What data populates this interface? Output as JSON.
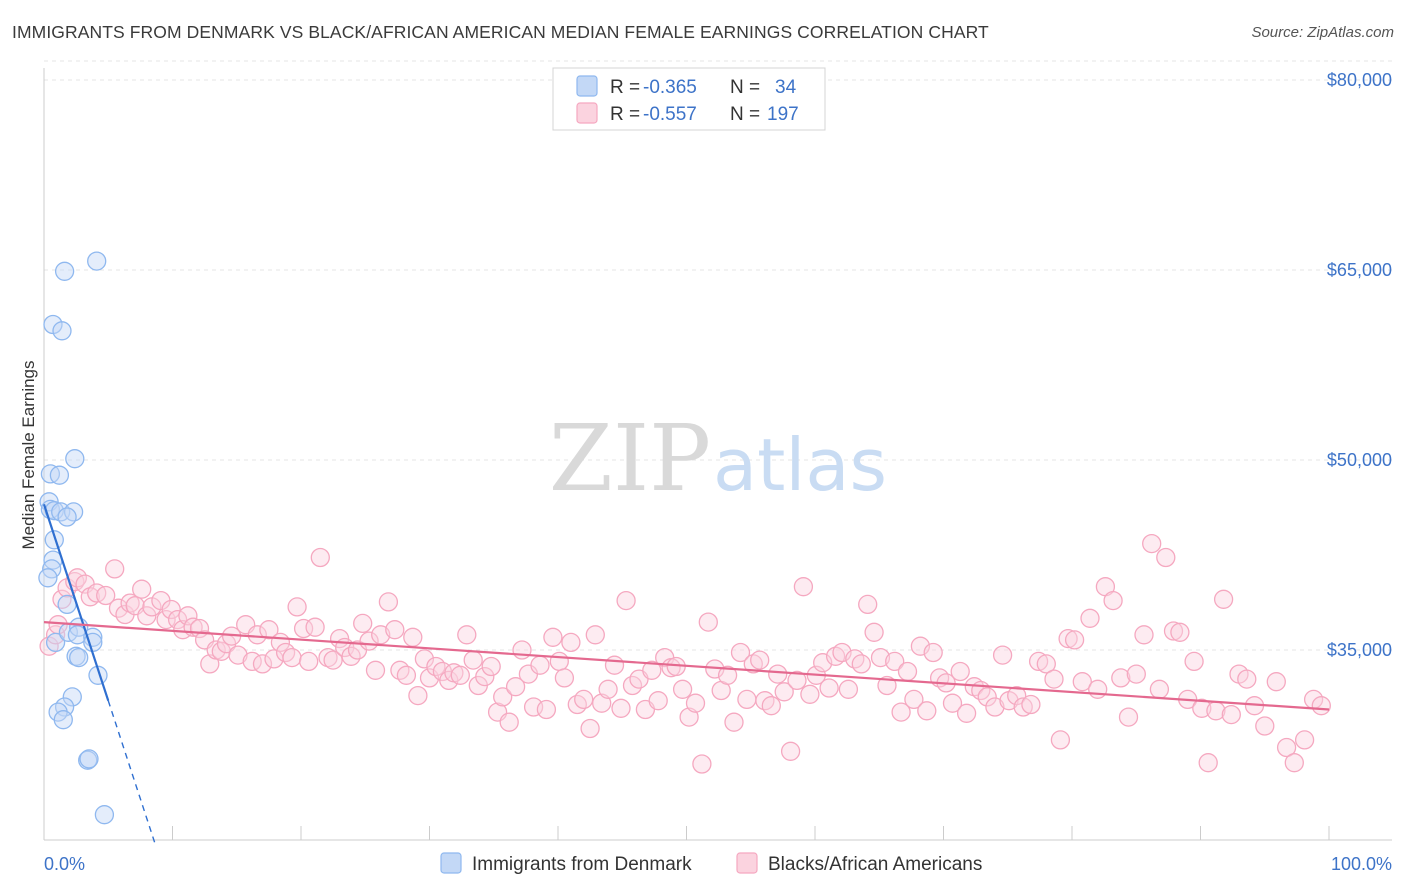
{
  "header": {
    "title": "IMMIGRANTS FROM DENMARK VS BLACK/AFRICAN AMERICAN MEDIAN FEMALE EARNINGS CORRELATION CHART",
    "source": "Source: ZipAtlas.com"
  },
  "watermark": {
    "zip": "ZIP",
    "atlas": "atlas"
  },
  "legend": {
    "r_label": "R =",
    "n_label": "N =",
    "rows": [
      {
        "r": "-0.365",
        "n": "34",
        "color": "#8fb8ef"
      },
      {
        "r": "-0.557",
        "n": "197",
        "color": "#f5a8c0"
      }
    ]
  },
  "chart_data": {
    "type": "scatter",
    "title": "IMMIGRANTS FROM DENMARK VS BLACK/AFRICAN AMERICAN MEDIAN FEMALE EARNINGS CORRELATION CHART",
    "ylabel": "Median Female Earnings",
    "xlabel": "",
    "x_tick_labels": [
      "0.0%",
      "100.0%"
    ],
    "y_tick_labels": [
      "$35,000",
      "$50,000",
      "$65,000",
      "$80,000"
    ],
    "y_tick_values": [
      35000,
      50000,
      65000,
      80000
    ],
    "xlim": [
      0,
      100
    ],
    "ylim": [
      20000,
      81500
    ],
    "grid": true,
    "series": [
      {
        "name": "Immigrants from Denmark",
        "color": "#8fb8ef",
        "line_color": "#2f6fd0",
        "trend": {
          "x0": 0,
          "y0": 46500,
          "x1": 5,
          "y1": 31000,
          "dash_to_x": 8.7
        },
        "points": [
          [
            4.1,
            65700
          ],
          [
            1.6,
            64900
          ],
          [
            0.7,
            60700
          ],
          [
            1.4,
            60200
          ],
          [
            2.4,
            50100
          ],
          [
            0.5,
            48900
          ],
          [
            1.2,
            48800
          ],
          [
            0.4,
            46700
          ],
          [
            0.5,
            46100
          ],
          [
            0.8,
            46000
          ],
          [
            1.3,
            45900
          ],
          [
            2.3,
            45900
          ],
          [
            1.8,
            45500
          ],
          [
            0.8,
            43700
          ],
          [
            0.7,
            42100
          ],
          [
            0.6,
            41400
          ],
          [
            0.3,
            40700
          ],
          [
            1.8,
            38600
          ],
          [
            0.9,
            35600
          ],
          [
            1.9,
            36400
          ],
          [
            2.7,
            36800
          ],
          [
            2.6,
            36200
          ],
          [
            3.8,
            36000
          ],
          [
            3.8,
            35600
          ],
          [
            2.5,
            34500
          ],
          [
            2.7,
            34400
          ],
          [
            4.2,
            33000
          ],
          [
            2.2,
            31300
          ],
          [
            1.6,
            30500
          ],
          [
            1.1,
            30100
          ],
          [
            1.5,
            29500
          ],
          [
            3.4,
            26300
          ],
          [
            3.5,
            26400
          ],
          [
            4.7,
            22000
          ]
        ]
      },
      {
        "name": "Blacks/African Americans",
        "color": "#f5a8c0",
        "line_color": "#e4698f",
        "trend": {
          "x0": 0,
          "y0": 37200,
          "x1": 100,
          "y1": 30300
        },
        "points": [
          [
            0.4,
            35300
          ],
          [
            0.9,
            36200
          ],
          [
            1.1,
            37000
          ],
          [
            1.4,
            39000
          ],
          [
            1.8,
            39900
          ],
          [
            2.4,
            40400
          ],
          [
            2.6,
            40700
          ],
          [
            3.2,
            40200
          ],
          [
            3.6,
            39200
          ],
          [
            4.1,
            39500
          ],
          [
            4.8,
            39300
          ],
          [
            5.5,
            41400
          ],
          [
            5.8,
            38300
          ],
          [
            6.3,
            37800
          ],
          [
            6.7,
            38700
          ],
          [
            7.1,
            38500
          ],
          [
            7.6,
            39800
          ],
          [
            8.0,
            37700
          ],
          [
            8.4,
            38400
          ],
          [
            9.1,
            38900
          ],
          [
            9.5,
            37400
          ],
          [
            9.9,
            38200
          ],
          [
            10.4,
            37400
          ],
          [
            10.8,
            36600
          ],
          [
            11.2,
            37700
          ],
          [
            11.6,
            36800
          ],
          [
            12.1,
            36700
          ],
          [
            12.5,
            35800
          ],
          [
            12.9,
            33900
          ],
          [
            13.4,
            35000
          ],
          [
            13.8,
            34900
          ],
          [
            14.2,
            35500
          ],
          [
            14.6,
            36100
          ],
          [
            15.1,
            34600
          ],
          [
            15.7,
            37000
          ],
          [
            16.2,
            34100
          ],
          [
            16.6,
            36200
          ],
          [
            17.0,
            33900
          ],
          [
            17.5,
            36600
          ],
          [
            17.9,
            34300
          ],
          [
            18.4,
            35600
          ],
          [
            18.8,
            34800
          ],
          [
            19.3,
            34400
          ],
          [
            19.7,
            38400
          ],
          [
            20.2,
            36700
          ],
          [
            20.6,
            34100
          ],
          [
            21.1,
            36800
          ],
          [
            21.5,
            42300
          ],
          [
            22.1,
            34400
          ],
          [
            22.5,
            34200
          ],
          [
            23.0,
            35900
          ],
          [
            23.4,
            35200
          ],
          [
            23.9,
            34500
          ],
          [
            24.4,
            35000
          ],
          [
            24.8,
            37100
          ],
          [
            25.3,
            35700
          ],
          [
            25.8,
            33400
          ],
          [
            26.2,
            36200
          ],
          [
            26.8,
            38800
          ],
          [
            27.3,
            36600
          ],
          [
            27.7,
            33400
          ],
          [
            28.2,
            33000
          ],
          [
            28.7,
            36000
          ],
          [
            29.1,
            31400
          ],
          [
            29.6,
            34300
          ],
          [
            30.0,
            32800
          ],
          [
            30.5,
            33700
          ],
          [
            31.0,
            33300
          ],
          [
            31.5,
            32600
          ],
          [
            31.9,
            33200
          ],
          [
            32.4,
            33000
          ],
          [
            32.9,
            36200
          ],
          [
            33.4,
            34200
          ],
          [
            33.8,
            32200
          ],
          [
            34.3,
            32900
          ],
          [
            34.8,
            33700
          ],
          [
            35.3,
            30100
          ],
          [
            35.7,
            31300
          ],
          [
            36.2,
            29300
          ],
          [
            36.7,
            32100
          ],
          [
            37.2,
            35000
          ],
          [
            37.7,
            33100
          ],
          [
            38.1,
            30500
          ],
          [
            38.6,
            33800
          ],
          [
            39.1,
            30300
          ],
          [
            39.6,
            36000
          ],
          [
            40.1,
            34100
          ],
          [
            40.5,
            32800
          ],
          [
            41.0,
            35600
          ],
          [
            41.5,
            30700
          ],
          [
            42.0,
            31100
          ],
          [
            42.5,
            28800
          ],
          [
            42.9,
            36200
          ],
          [
            43.4,
            30800
          ],
          [
            43.9,
            31900
          ],
          [
            44.4,
            33800
          ],
          [
            44.9,
            30400
          ],
          [
            45.3,
            38900
          ],
          [
            45.8,
            32200
          ],
          [
            46.3,
            32700
          ],
          [
            46.8,
            30300
          ],
          [
            47.3,
            33400
          ],
          [
            47.8,
            31000
          ],
          [
            48.3,
            34400
          ],
          [
            48.8,
            33600
          ],
          [
            49.2,
            33700
          ],
          [
            49.7,
            31900
          ],
          [
            50.2,
            29700
          ],
          [
            50.7,
            30800
          ],
          [
            51.2,
            26000
          ],
          [
            51.7,
            37200
          ],
          [
            52.2,
            33500
          ],
          [
            52.7,
            31800
          ],
          [
            53.2,
            33000
          ],
          [
            53.7,
            29300
          ],
          [
            54.2,
            34800
          ],
          [
            54.7,
            31100
          ],
          [
            55.2,
            33900
          ],
          [
            55.7,
            34200
          ],
          [
            56.1,
            31000
          ],
          [
            56.6,
            30600
          ],
          [
            57.1,
            33100
          ],
          [
            57.6,
            31700
          ],
          [
            58.1,
            27000
          ],
          [
            58.6,
            32600
          ],
          [
            59.1,
            40000
          ],
          [
            59.6,
            31500
          ],
          [
            60.1,
            33000
          ],
          [
            60.6,
            34000
          ],
          [
            61.1,
            32000
          ],
          [
            61.6,
            34500
          ],
          [
            62.1,
            34800
          ],
          [
            62.6,
            31900
          ],
          [
            63.1,
            34300
          ],
          [
            63.6,
            33900
          ],
          [
            64.1,
            38600
          ],
          [
            64.6,
            36400
          ],
          [
            65.1,
            34400
          ],
          [
            65.6,
            32200
          ],
          [
            66.2,
            34100
          ],
          [
            66.7,
            30100
          ],
          [
            67.2,
            33300
          ],
          [
            67.7,
            31100
          ],
          [
            68.2,
            35300
          ],
          [
            68.7,
            30200
          ],
          [
            69.2,
            34800
          ],
          [
            69.7,
            32800
          ],
          [
            70.2,
            32400
          ],
          [
            70.7,
            30800
          ],
          [
            71.3,
            33300
          ],
          [
            71.8,
            30000
          ],
          [
            72.4,
            32100
          ],
          [
            72.9,
            31800
          ],
          [
            73.4,
            31300
          ],
          [
            74.0,
            30500
          ],
          [
            74.6,
            34600
          ],
          [
            75.1,
            31000
          ],
          [
            75.7,
            31400
          ],
          [
            76.2,
            30500
          ],
          [
            76.8,
            30700
          ],
          [
            77.4,
            34100
          ],
          [
            78.0,
            33900
          ],
          [
            78.6,
            32700
          ],
          [
            79.1,
            27900
          ],
          [
            79.7,
            35900
          ],
          [
            80.2,
            35800
          ],
          [
            80.8,
            32500
          ],
          [
            81.4,
            37500
          ],
          [
            82.0,
            31900
          ],
          [
            82.6,
            40000
          ],
          [
            83.2,
            38900
          ],
          [
            83.8,
            32800
          ],
          [
            84.4,
            29700
          ],
          [
            85.0,
            33100
          ],
          [
            85.6,
            36200
          ],
          [
            86.2,
            43400
          ],
          [
            86.8,
            31900
          ],
          [
            87.3,
            42300
          ],
          [
            87.9,
            36500
          ],
          [
            88.4,
            36400
          ],
          [
            89.0,
            31100
          ],
          [
            89.5,
            34100
          ],
          [
            90.1,
            30400
          ],
          [
            90.6,
            26100
          ],
          [
            91.2,
            30200
          ],
          [
            91.8,
            39000
          ],
          [
            92.4,
            29900
          ],
          [
            93.0,
            33100
          ],
          [
            93.6,
            32700
          ],
          [
            94.2,
            30600
          ],
          [
            95.0,
            29000
          ],
          [
            95.9,
            32500
          ],
          [
            96.7,
            27300
          ],
          [
            97.3,
            26100
          ],
          [
            98.1,
            27900
          ],
          [
            98.8,
            31100
          ],
          [
            99.4,
            30600
          ]
        ]
      }
    ]
  }
}
